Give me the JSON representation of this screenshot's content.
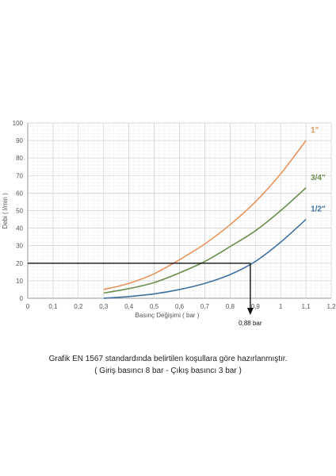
{
  "chart_data": {
    "type": "line",
    "xlabel": "Basınç Değişimi ( bar )",
    "ylabel": "Debi ( l/min )",
    "xlim": [
      0,
      1.2
    ],
    "ylim": [
      0,
      100
    ],
    "xticks": [
      "0",
      "0,1",
      "0,2",
      "0,3",
      "0,4",
      "0,5",
      "0,6",
      "0,7",
      "0,8",
      "0,9",
      "1",
      "1,1",
      "1,2"
    ],
    "xtick_values": [
      0,
      0.1,
      0.2,
      0.3,
      0.4,
      0.5,
      0.6,
      0.7,
      0.8,
      0.9,
      1.0,
      1.1,
      1.2
    ],
    "yticks": [
      "0",
      "10",
      "20",
      "30",
      "40",
      "50",
      "60",
      "70",
      "80",
      "90",
      "100"
    ],
    "ytick_values": [
      0,
      10,
      20,
      30,
      40,
      50,
      60,
      70,
      80,
      90,
      100
    ],
    "grid": true,
    "series": [
      {
        "name": "1\"",
        "color": "#e8935a",
        "x": [
          0.3,
          0.4,
          0.5,
          0.6,
          0.7,
          0.8,
          0.9,
          1.0,
          1.1
        ],
        "values": [
          5,
          8.5,
          14,
          22,
          31,
          42,
          55,
          71,
          90
        ]
      },
      {
        "name": "3/4\"",
        "color": "#6b8e4e",
        "x": [
          0.3,
          0.4,
          0.5,
          0.6,
          0.7,
          0.8,
          0.9,
          1.0,
          1.1
        ],
        "values": [
          3,
          5.5,
          9,
          14.5,
          21,
          29.5,
          38.5,
          50,
          63
        ]
      },
      {
        "name": "1/2\"",
        "color": "#3f72a3",
        "x": [
          0.3,
          0.4,
          0.5,
          0.6,
          0.7,
          0.8,
          0.9,
          1.0,
          1.1
        ],
        "values": [
          0,
          1,
          2.5,
          5,
          8.5,
          13.5,
          21,
          32,
          45
        ]
      }
    ],
    "annotation": {
      "label": "0,88 bar",
      "x": 0.88,
      "y": 20
    }
  },
  "caption": {
    "line1": "Grafik EN 1567 standardında belirtilen koşullara göre hazırlanmıştır.",
    "line2": "( Giriş basıncı 8 bar - Çıkış basıncı 3 bar )"
  }
}
